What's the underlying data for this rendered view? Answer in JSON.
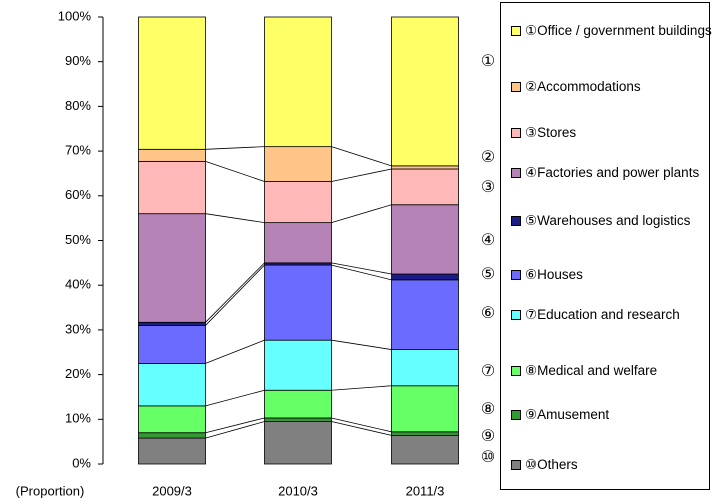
{
  "chart_data": {
    "type": "stacked_bar",
    "x_label": "(Proportion)",
    "categories": [
      "2009/3",
      "2010/3",
      "2011/3"
    ],
    "ylim": [
      0,
      100
    ],
    "yticks": [
      {
        "value": 0,
        "label": "0%"
      },
      {
        "value": 10,
        "label": "10%"
      },
      {
        "value": 20,
        "label": "20%"
      },
      {
        "value": 30,
        "label": "30%"
      },
      {
        "value": 40,
        "label": "40%"
      },
      {
        "value": 50,
        "label": "50%"
      },
      {
        "value": 60,
        "label": "60%"
      },
      {
        "value": 70,
        "label": "70%"
      },
      {
        "value": 80,
        "label": "80%"
      },
      {
        "value": 90,
        "label": "90%"
      },
      {
        "value": 100,
        "label": "100%"
      }
    ],
    "series": [
      {
        "name": "①Office / government buildings",
        "marker": "①",
        "color": "#ffff66",
        "values": [
          29.6,
          29.0,
          33.3
        ]
      },
      {
        "name": "②Accommodations",
        "marker": "②",
        "color": "#ffc488",
        "values": [
          2.7,
          7.8,
          0.7
        ]
      },
      {
        "name": "③Stores",
        "marker": "③",
        "color": "#ffb8b8",
        "values": [
          11.7,
          9.2,
          8.0
        ]
      },
      {
        "name": "④Factories and power plants",
        "marker": "④",
        "color": "#b583b5",
        "values": [
          24.3,
          9.0,
          15.5
        ]
      },
      {
        "name": "⑤Warehouses and logistics",
        "marker": "⑤",
        "color": "#1c1c88",
        "values": [
          0.7,
          0.5,
          1.3
        ]
      },
      {
        "name": "⑥Houses",
        "marker": "⑥",
        "color": "#6b6bff",
        "values": [
          8.5,
          16.8,
          15.6
        ]
      },
      {
        "name": "⑦Education and research",
        "marker": "⑦",
        "color": "#66ffff",
        "values": [
          9.5,
          11.2,
          8.1
        ]
      },
      {
        "name": "⑧Medical and welfare",
        "marker": "⑧",
        "color": "#66ff66",
        "values": [
          6.0,
          6.2,
          10.3
        ]
      },
      {
        "name": "⑨Amusement",
        "marker": "⑨",
        "color": "#339933",
        "values": [
          1.2,
          0.8,
          0.8
        ]
      },
      {
        "name": "⑩Others",
        "marker": "⑩",
        "color": "#808080",
        "values": [
          5.8,
          9.5,
          6.4
        ]
      }
    ]
  }
}
